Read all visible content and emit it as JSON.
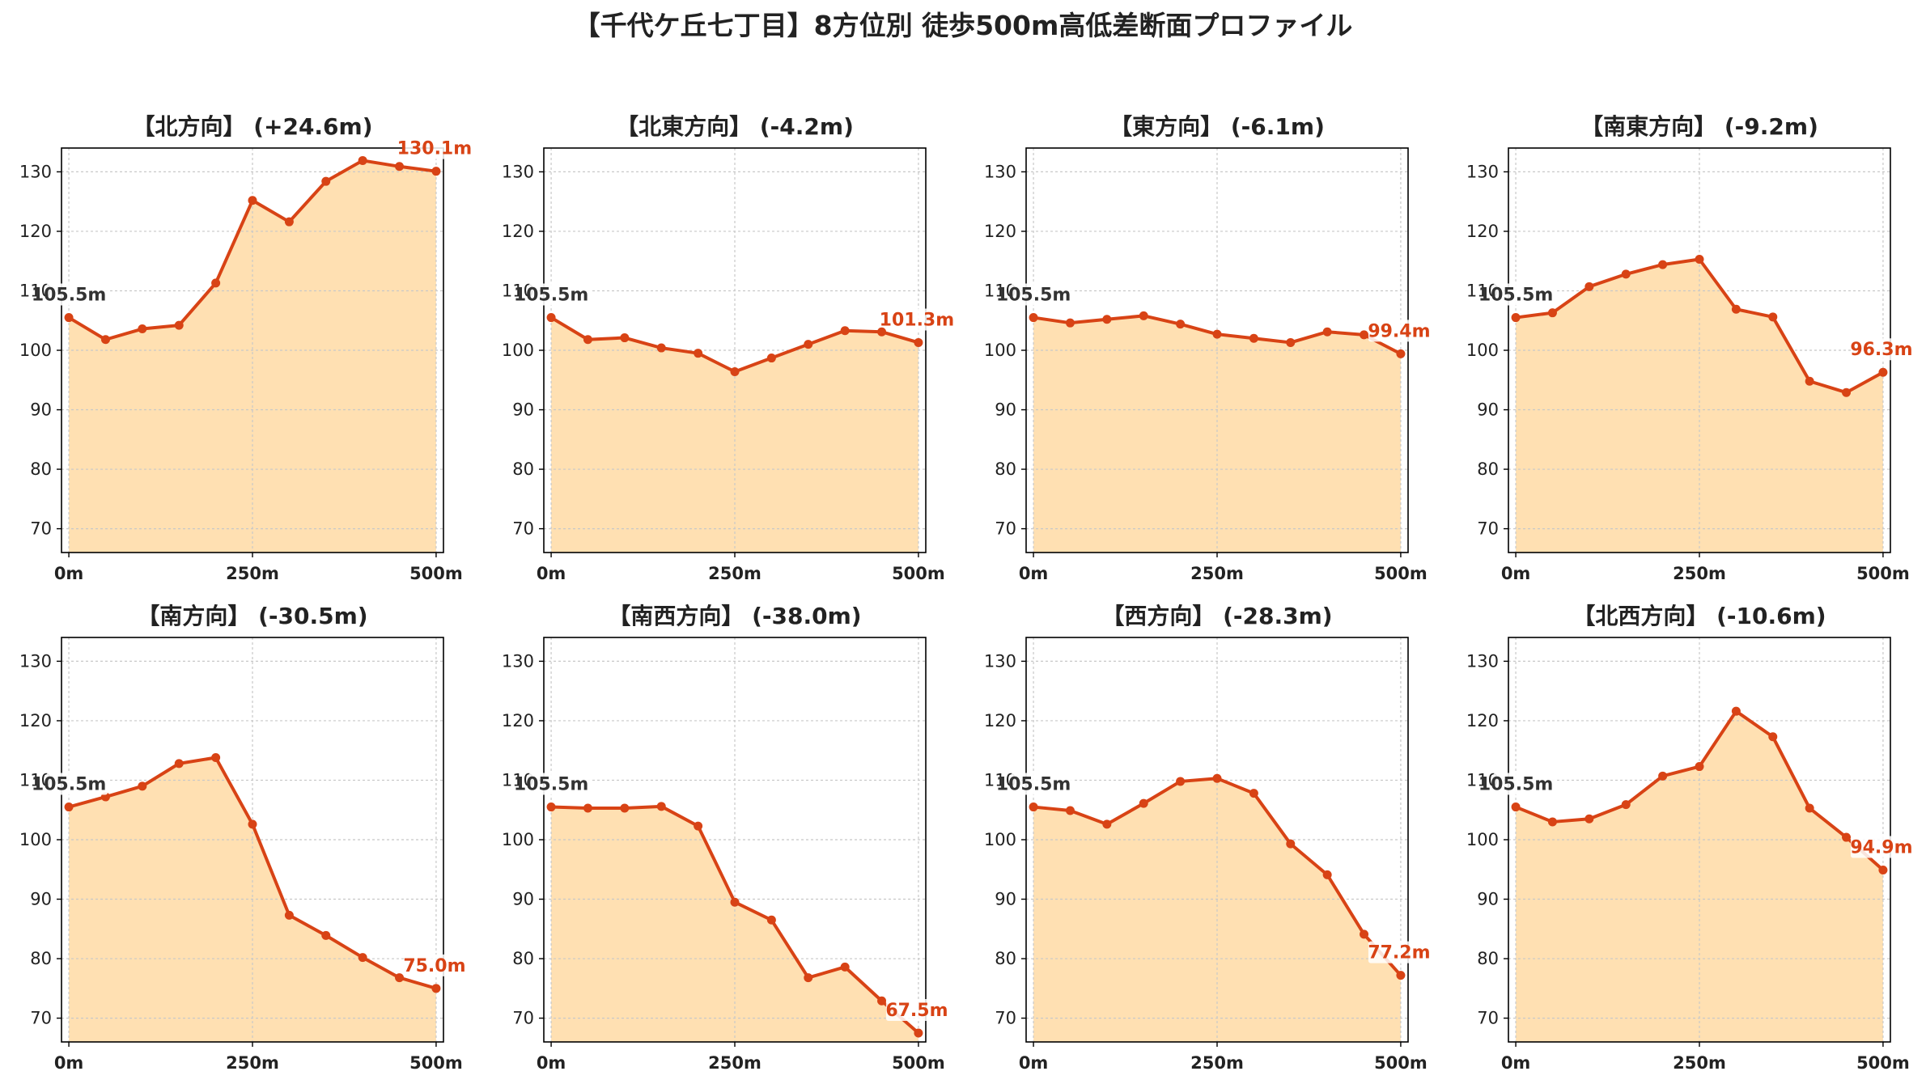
{
  "suptitle": "【千代ケ丘七丁目】8方位別 徒歩500m高低差断面プロファイル",
  "chart_data": [
    {
      "type": "line",
      "title": "【北方向】 (+24.6m)",
      "x": [
        0,
        50,
        100,
        150,
        200,
        250,
        300,
        350,
        400,
        450,
        500
      ],
      "values": [
        105.5,
        101.8,
        103.6,
        104.2,
        111.3,
        125.2,
        121.6,
        128.4,
        131.9,
        130.9,
        130.1
      ],
      "start_label": "105.5m",
      "end_label": "130.1m",
      "xticks": [
        "0m",
        "250m",
        "500m"
      ],
      "yticks": [
        70,
        80,
        90,
        100,
        110,
        120,
        130
      ],
      "ylim": [
        66,
        134
      ],
      "xlim": [
        -10,
        510
      ],
      "grid": true
    },
    {
      "type": "line",
      "title": "【北東方向】 (-4.2m)",
      "x": [
        0,
        50,
        100,
        150,
        200,
        250,
        300,
        350,
        400,
        450,
        500
      ],
      "values": [
        105.5,
        101.8,
        102.1,
        100.4,
        99.5,
        96.4,
        98.7,
        101.0,
        103.3,
        103.1,
        101.3
      ],
      "start_label": "105.5m",
      "end_label": "101.3m",
      "xticks": [
        "0m",
        "250m",
        "500m"
      ],
      "yticks": [
        70,
        80,
        90,
        100,
        110,
        120,
        130
      ],
      "ylim": [
        66,
        134
      ],
      "xlim": [
        -10,
        510
      ],
      "grid": true
    },
    {
      "type": "line",
      "title": "【東方向】 (-6.1m)",
      "x": [
        0,
        50,
        100,
        150,
        200,
        250,
        300,
        350,
        400,
        450,
        500
      ],
      "values": [
        105.5,
        104.6,
        105.2,
        105.8,
        104.4,
        102.7,
        102.0,
        101.3,
        103.1,
        102.6,
        99.4
      ],
      "start_label": "105.5m",
      "end_label": "99.4m",
      "xticks": [
        "0m",
        "250m",
        "500m"
      ],
      "yticks": [
        70,
        80,
        90,
        100,
        110,
        120,
        130
      ],
      "ylim": [
        66,
        134
      ],
      "xlim": [
        -10,
        510
      ],
      "grid": true
    },
    {
      "type": "line",
      "title": "【南東方向】 (-9.2m)",
      "x": [
        0,
        50,
        100,
        150,
        200,
        250,
        300,
        350,
        400,
        450,
        500
      ],
      "values": [
        105.5,
        106.3,
        110.7,
        112.8,
        114.4,
        115.3,
        106.9,
        105.6,
        94.8,
        92.9,
        96.3
      ],
      "start_label": "105.5m",
      "end_label": "96.3m",
      "xticks": [
        "0m",
        "250m",
        "500m"
      ],
      "yticks": [
        70,
        80,
        90,
        100,
        110,
        120,
        130
      ],
      "ylim": [
        66,
        134
      ],
      "xlim": [
        -10,
        510
      ],
      "grid": true
    },
    {
      "type": "line",
      "title": "【南方向】 (-30.5m)",
      "x": [
        0,
        50,
        100,
        150,
        200,
        250,
        300,
        350,
        400,
        450,
        500
      ],
      "values": [
        105.5,
        107.2,
        109.0,
        112.8,
        113.8,
        102.6,
        87.3,
        83.9,
        80.2,
        76.8,
        75.0
      ],
      "start_label": "105.5m",
      "end_label": "75.0m",
      "xticks": [
        "0m",
        "250m",
        "500m"
      ],
      "yticks": [
        70,
        80,
        90,
        100,
        110,
        120,
        130
      ],
      "ylim": [
        66,
        134
      ],
      "xlim": [
        -10,
        510
      ],
      "grid": true
    },
    {
      "type": "line",
      "title": "【南西方向】 (-38.0m)",
      "x": [
        0,
        50,
        100,
        150,
        200,
        250,
        300,
        350,
        400,
        450,
        500
      ],
      "values": [
        105.5,
        105.3,
        105.3,
        105.6,
        102.3,
        89.5,
        86.5,
        76.8,
        78.6,
        72.9,
        67.5
      ],
      "start_label": "105.5m",
      "end_label": "67.5m",
      "xticks": [
        "0m",
        "250m",
        "500m"
      ],
      "yticks": [
        70,
        80,
        90,
        100,
        110,
        120,
        130
      ],
      "ylim": [
        66,
        134
      ],
      "xlim": [
        -10,
        510
      ],
      "grid": true
    },
    {
      "type": "line",
      "title": "【西方向】 (-28.3m)",
      "x": [
        0,
        50,
        100,
        150,
        200,
        250,
        300,
        350,
        400,
        450,
        500
      ],
      "values": [
        105.5,
        104.9,
        102.6,
        106.1,
        109.8,
        110.3,
        107.8,
        99.3,
        94.1,
        84.1,
        77.2
      ],
      "start_label": "105.5m",
      "end_label": "77.2m",
      "xticks": [
        "0m",
        "250m",
        "500m"
      ],
      "yticks": [
        70,
        80,
        90,
        100,
        110,
        120,
        130
      ],
      "ylim": [
        66,
        134
      ],
      "xlim": [
        -10,
        510
      ],
      "grid": true
    },
    {
      "type": "line",
      "title": "【北西方向】 (-10.6m)",
      "x": [
        0,
        50,
        100,
        150,
        200,
        250,
        300,
        350,
        400,
        450,
        500
      ],
      "values": [
        105.5,
        103.0,
        103.5,
        105.9,
        110.7,
        112.3,
        121.6,
        117.3,
        105.3,
        100.4,
        94.9
      ],
      "start_label": "105.5m",
      "end_label": "94.9m",
      "xticks": [
        "0m",
        "250m",
        "500m"
      ],
      "yticks": [
        70,
        80,
        90,
        100,
        110,
        120,
        130
      ],
      "ylim": [
        66,
        134
      ],
      "xlim": [
        -10,
        510
      ],
      "grid": true
    }
  ],
  "colors": {
    "line": "#d84315",
    "fill": "#ffe0b2",
    "start_label": "#333333",
    "end_label": "#d84315",
    "grid": "#c8c8c8",
    "axis": "#000000",
    "text": "#222222"
  }
}
